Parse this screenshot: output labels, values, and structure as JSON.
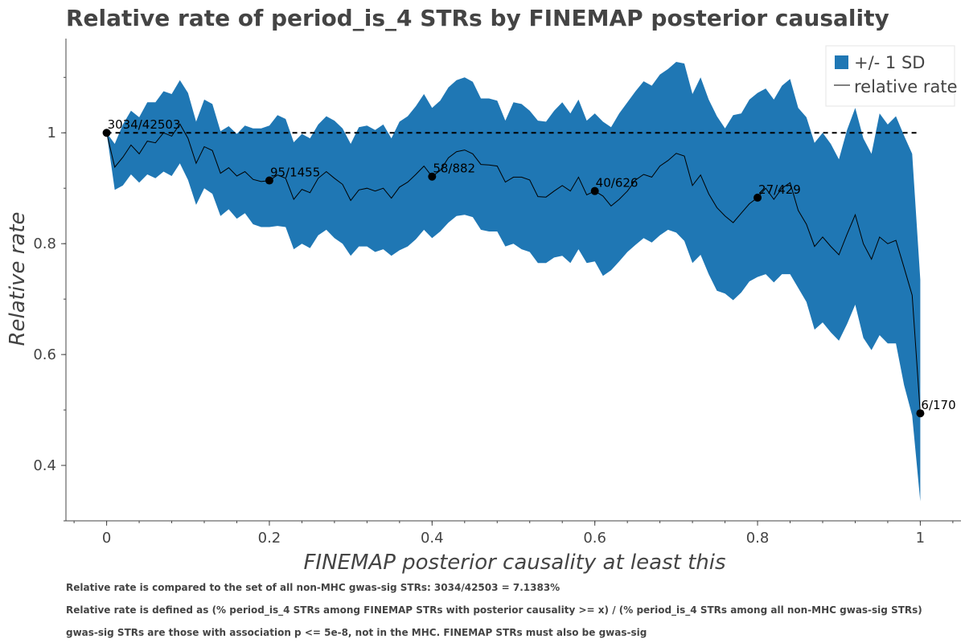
{
  "chart_data": {
    "type": "line",
    "title": "Relative rate of period_is_4 STRs by FINEMAP posterior causality",
    "xlabel": "FINEMAP posterior causality at least this",
    "ylabel": "Relative rate",
    "xlim": [
      -0.05,
      1.05
    ],
    "ylim": [
      0.3,
      1.17
    ],
    "xticks": [
      0,
      0.2,
      0.4,
      0.6,
      0.8,
      1
    ],
    "xtick_labels": [
      "0",
      "0.2",
      "0.4",
      "0.6",
      "0.8",
      "1"
    ],
    "yticks": [
      0.4,
      0.6,
      0.8,
      1
    ],
    "ytick_labels": [
      "0.4",
      "0.6",
      "0.8",
      "1"
    ],
    "colors": {
      "band": "#1f77b4",
      "line": "#000000",
      "reference": "#000000"
    },
    "legend": {
      "position": "top-right",
      "entries": [
        {
          "label": "+/- 1 SD",
          "type": "patch"
        },
        {
          "label": "relative rate",
          "type": "line"
        }
      ]
    },
    "reference_line": {
      "y": 1,
      "style": "dashed"
    },
    "series": [
      {
        "name": "relative rate",
        "x": [
          0,
          0.01,
          0.02,
          0.03,
          0.04,
          0.05,
          0.06,
          0.07,
          0.08,
          0.09,
          0.1,
          0.11,
          0.12,
          0.13,
          0.14,
          0.15,
          0.16,
          0.17,
          0.18,
          0.19,
          0.2,
          0.21,
          0.22,
          0.23,
          0.24,
          0.25,
          0.26,
          0.27,
          0.28,
          0.29,
          0.3,
          0.31,
          0.32,
          0.33,
          0.34,
          0.35,
          0.36,
          0.37,
          0.38,
          0.39,
          0.4,
          0.41,
          0.42,
          0.43,
          0.44,
          0.45,
          0.46,
          0.47,
          0.48,
          0.49,
          0.5,
          0.51,
          0.52,
          0.53,
          0.54,
          0.55,
          0.56,
          0.57,
          0.58,
          0.59,
          0.6,
          0.61,
          0.62,
          0.63,
          0.64,
          0.65,
          0.66,
          0.67,
          0.68,
          0.69,
          0.7,
          0.71,
          0.72,
          0.73,
          0.74,
          0.75,
          0.76,
          0.77,
          0.78,
          0.79,
          0.8,
          0.81,
          0.82,
          0.83,
          0.84,
          0.85,
          0.86,
          0.87,
          0.88,
          0.89,
          0.9,
          0.91,
          0.92,
          0.93,
          0.94,
          0.95,
          0.96,
          0.97,
          0.98,
          0.99,
          1
        ],
        "y": [
          1.0,
          0.938,
          0.956,
          0.978,
          0.962,
          0.985,
          0.982,
          1.0,
          0.994,
          1.016,
          0.99,
          0.945,
          0.975,
          0.968,
          0.927,
          0.937,
          0.922,
          0.93,
          0.916,
          0.912,
          0.914,
          0.924,
          0.918,
          0.88,
          0.898,
          0.892,
          0.918,
          0.93,
          0.918,
          0.907,
          0.878,
          0.897,
          0.9,
          0.895,
          0.9,
          0.882,
          0.902,
          0.911,
          0.925,
          0.94,
          0.921,
          0.932,
          0.955,
          0.966,
          0.969,
          0.962,
          0.943,
          0.942,
          0.94,
          0.911,
          0.92,
          0.92,
          0.915,
          0.885,
          0.884,
          0.895,
          0.905,
          0.895,
          0.92,
          0.888,
          0.895,
          0.886,
          0.868,
          0.88,
          0.895,
          0.915,
          0.925,
          0.92,
          0.94,
          0.95,
          0.963,
          0.958,
          0.905,
          0.924,
          0.89,
          0.865,
          0.85,
          0.838,
          0.855,
          0.872,
          0.883,
          0.9,
          0.88,
          0.9,
          0.91,
          0.86,
          0.835,
          0.795,
          0.812,
          0.795,
          0.78,
          0.817,
          0.852,
          0.8,
          0.772,
          0.812,
          0.8,
          0.806,
          0.757,
          0.707,
          0.494
        ]
      },
      {
        "name": "+/- 1 SD",
        "x": [
          0,
          0.01,
          0.02,
          0.03,
          0.04,
          0.05,
          0.06,
          0.07,
          0.08,
          0.09,
          0.1,
          0.11,
          0.12,
          0.13,
          0.14,
          0.15,
          0.16,
          0.17,
          0.18,
          0.19,
          0.2,
          0.21,
          0.22,
          0.23,
          0.24,
          0.25,
          0.26,
          0.27,
          0.28,
          0.29,
          0.3,
          0.31,
          0.32,
          0.33,
          0.34,
          0.35,
          0.36,
          0.37,
          0.38,
          0.39,
          0.4,
          0.41,
          0.42,
          0.43,
          0.44,
          0.45,
          0.46,
          0.47,
          0.48,
          0.49,
          0.5,
          0.51,
          0.52,
          0.53,
          0.54,
          0.55,
          0.56,
          0.57,
          0.58,
          0.59,
          0.6,
          0.61,
          0.62,
          0.63,
          0.64,
          0.65,
          0.66,
          0.67,
          0.68,
          0.69,
          0.7,
          0.71,
          0.72,
          0.73,
          0.74,
          0.75,
          0.76,
          0.77,
          0.78,
          0.79,
          0.8,
          0.81,
          0.82,
          0.83,
          0.84,
          0.85,
          0.86,
          0.87,
          0.88,
          0.89,
          0.9,
          0.91,
          0.92,
          0.93,
          0.94,
          0.95,
          0.96,
          0.97,
          0.98,
          0.99,
          1
        ],
        "upper": [
          1.0,
          0.98,
          1.015,
          1.04,
          1.028,
          1.055,
          1.055,
          1.075,
          1.07,
          1.095,
          1.072,
          1.02,
          1.06,
          1.052,
          1.003,
          1.012,
          0.998,
          1.013,
          1.008,
          1.008,
          1.013,
          1.032,
          1.025,
          0.983,
          0.998,
          0.99,
          1.015,
          1.03,
          1.022,
          1.008,
          0.98,
          1.01,
          1.013,
          1.005,
          1.015,
          0.99,
          1.02,
          1.03,
          1.048,
          1.07,
          1.045,
          1.058,
          1.082,
          1.095,
          1.1,
          1.092,
          1.062,
          1.062,
          1.058,
          1.022,
          1.055,
          1.052,
          1.04,
          1.022,
          1.02,
          1.04,
          1.055,
          1.035,
          1.06,
          1.022,
          1.035,
          1.02,
          1.01,
          1.035,
          1.055,
          1.075,
          1.093,
          1.085,
          1.105,
          1.115,
          1.128,
          1.125,
          1.07,
          1.1,
          1.06,
          1.03,
          1.008,
          1.032,
          1.035,
          1.06,
          1.072,
          1.08,
          1.06,
          1.085,
          1.097,
          1.045,
          1.028,
          0.982,
          1.0,
          0.98,
          0.952,
          1.005,
          1.045,
          0.99,
          0.962,
          1.035,
          1.015,
          1.03,
          0.995,
          0.962,
          0.735
        ],
        "lower": [
          1.0,
          0.897,
          0.905,
          0.925,
          0.91,
          0.925,
          0.918,
          0.93,
          0.922,
          0.945,
          0.915,
          0.87,
          0.9,
          0.89,
          0.85,
          0.862,
          0.845,
          0.855,
          0.835,
          0.83,
          0.83,
          0.832,
          0.83,
          0.79,
          0.8,
          0.792,
          0.815,
          0.825,
          0.81,
          0.8,
          0.778,
          0.795,
          0.795,
          0.785,
          0.79,
          0.778,
          0.788,
          0.795,
          0.808,
          0.825,
          0.81,
          0.822,
          0.838,
          0.85,
          0.852,
          0.848,
          0.825,
          0.822,
          0.822,
          0.795,
          0.8,
          0.79,
          0.785,
          0.765,
          0.765,
          0.775,
          0.778,
          0.765,
          0.79,
          0.765,
          0.768,
          0.742,
          0.752,
          0.768,
          0.785,
          0.798,
          0.81,
          0.802,
          0.815,
          0.825,
          0.82,
          0.805,
          0.765,
          0.78,
          0.745,
          0.715,
          0.71,
          0.698,
          0.712,
          0.732,
          0.74,
          0.745,
          0.73,
          0.745,
          0.745,
          0.72,
          0.695,
          0.645,
          0.658,
          0.64,
          0.625,
          0.655,
          0.69,
          0.63,
          0.608,
          0.635,
          0.62,
          0.62,
          0.545,
          0.49,
          0.335
        ]
      }
    ],
    "points": [
      {
        "x": 0,
        "y": 1.0,
        "label": "3034/42503"
      },
      {
        "x": 0.2,
        "y": 0.914,
        "label": "95/1455"
      },
      {
        "x": 0.4,
        "y": 0.921,
        "label": "58/882"
      },
      {
        "x": 0.6,
        "y": 0.895,
        "label": "40/626"
      },
      {
        "x": 0.8,
        "y": 0.883,
        "label": "27/429"
      },
      {
        "x": 1,
        "y": 0.494,
        "label": "6/170"
      }
    ]
  },
  "notes": [
    "Relative rate is compared to the set of all non-MHC gwas-sig STRs: 3034/42503 = 7.1383%",
    "Relative rate is defined as (% period_is_4 STRs among FINEMAP STRs with posterior causality >= x) / (% period_is_4 STRs among all non-MHC gwas-sig STRs)",
    "gwas-sig STRs are those with association p <= 5e-8, not in the MHC. FINEMAP STRs must also be gwas-sig"
  ]
}
